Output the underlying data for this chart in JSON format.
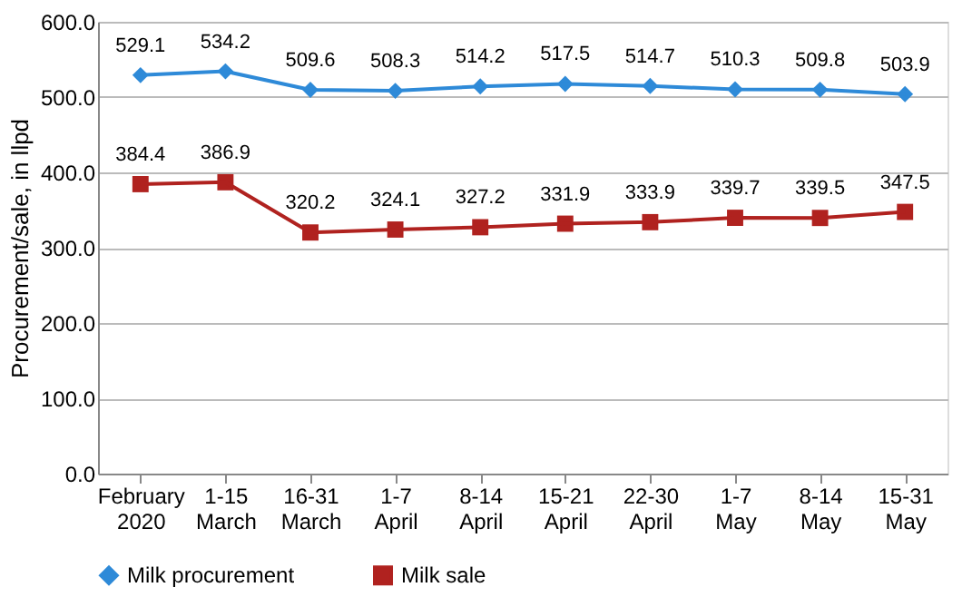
{
  "chart_data": {
    "type": "line",
    "ylabel": "Procurement/sale, in llpd",
    "categories": [
      "February 2020",
      "1-15 March",
      "16-31 March",
      "1-7 April",
      "8-14 April",
      "15-21 April",
      "22-30 April",
      "1-7 May",
      "8-14 May",
      "15-31 May"
    ],
    "series": [
      {
        "name": "Milk procurement",
        "color": "#2e8ad8",
        "marker": "diamond",
        "values": [
          529.1,
          534.2,
          509.6,
          508.3,
          514.2,
          517.5,
          514.7,
          510.3,
          509.8,
          503.9
        ]
      },
      {
        "name": "Milk sale",
        "color": "#b0221f",
        "marker": "square",
        "values": [
          384.4,
          386.9,
          320.2,
          324.1,
          327.2,
          331.9,
          333.9,
          339.7,
          339.5,
          347.5
        ]
      }
    ],
    "ylim": [
      0,
      600
    ],
    "yticks": [
      {
        "value": 0,
        "label": "0.0"
      },
      {
        "value": 100,
        "label": "100.0"
      },
      {
        "value": 200,
        "label": "200.0"
      },
      {
        "value": 300,
        "label": "300.0"
      },
      {
        "value": 400,
        "label": "400.0"
      },
      {
        "value": 500,
        "label": "500.0"
      },
      {
        "value": 600,
        "label": "600.0"
      }
    ],
    "grid": "y",
    "legend": "bottom",
    "data_labels": true,
    "line_style": "solid"
  }
}
